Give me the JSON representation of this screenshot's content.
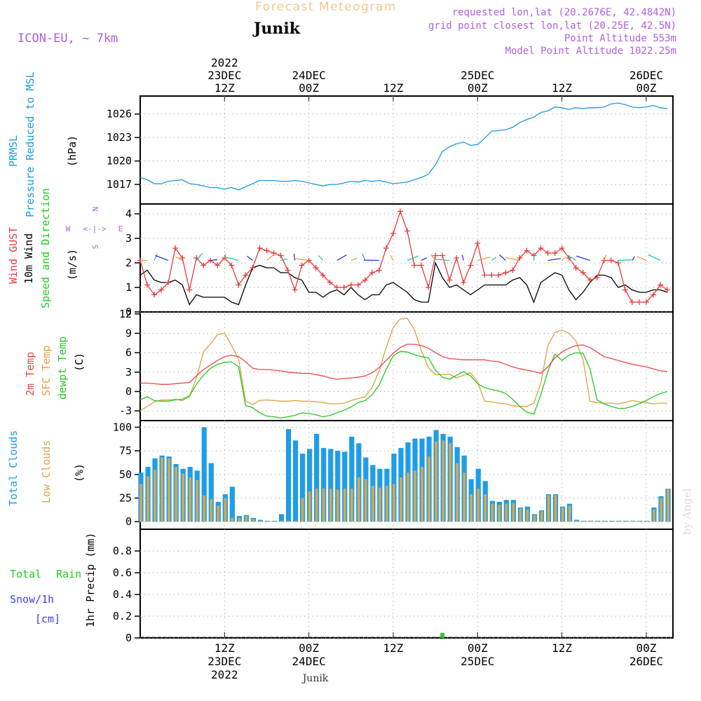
{
  "header": {
    "title": "Forecast Meteogram",
    "location": "Junik",
    "model": "ICON-EU, ~ 7km",
    "requested": "requested lon,lat (20.2676E, 42.4842N)",
    "gridpoint": "grid point closest lon,lat (20.25E, 42.5N)",
    "point_alt": "Point Altitude 553m",
    "model_alt": "Model Point Altitude 1022.25m",
    "footer_location": "Junik",
    "watermark": "by Angel"
  },
  "colors": {
    "pressure": "#1a9ce0",
    "gust": "#e83c3c",
    "wind10m": "#000000",
    "temp2m": "#e84848",
    "sfc": "#e0a040",
    "dewpt": "#22cc22",
    "totalclouds": "#1e9de8",
    "lowclouds": "#d8a850",
    "label_purple": "#b060e0",
    "rain": "#22cc22",
    "snow": "#4040e0"
  },
  "time_axis": {
    "top_labels": [
      {
        "t": 12,
        "lines": [
          "2022",
          "23DEC",
          "12Z"
        ]
      },
      {
        "t": 24,
        "lines": [
          "24DEC",
          "00Z"
        ]
      },
      {
        "t": 36,
        "lines": [
          "12Z"
        ]
      },
      {
        "t": 48,
        "lines": [
          "25DEC",
          "00Z"
        ]
      },
      {
        "t": 60,
        "lines": [
          "12Z"
        ]
      },
      {
        "t": 72,
        "lines": [
          "26DEC",
          "00Z"
        ]
      }
    ],
    "bottom_labels": [
      {
        "t": 12,
        "lines": [
          "12Z",
          "23DEC",
          "2022"
        ]
      },
      {
        "t": 24,
        "lines": [
          "00Z",
          "24DEC"
        ]
      },
      {
        "t": 36,
        "lines": [
          "12Z"
        ]
      },
      {
        "t": 48,
        "lines": [
          "00Z",
          "25DEC"
        ]
      },
      {
        "t": 60,
        "lines": [
          "12Z"
        ]
      },
      {
        "t": 72,
        "lines": [
          "00Z",
          "26DEC"
        ]
      }
    ]
  },
  "panels": {
    "pressure": {
      "labels": [
        "PRMSL",
        "Pressure Reduced to MSL"
      ],
      "unit": "(hPa)"
    },
    "wind": {
      "labels": [
        "Wind GUST",
        "10m Wind",
        "Speed and Direction"
      ],
      "unit": "(m/s)",
      "compass": {
        "n": "N",
        "s": "S",
        "w": "W",
        "e": "E"
      }
    },
    "temp": {
      "labels": [
        "2m Temp",
        "SFC Temp",
        "dewpt Temp"
      ],
      "unit": "(C)"
    },
    "clouds": {
      "labels": [
        "Total Clouds",
        "Low Clouds"
      ],
      "unit": "(%)"
    },
    "precip": {
      "labels": [
        "Total",
        "Rain",
        "Snow/1h",
        "[cm]"
      ],
      "unit": "1hr Precip (mm)"
    }
  },
  "chart_data": [
    {
      "type": "line",
      "title": "PRMSL Pressure Reduced to MSL",
      "ylabel": "(hPa)",
      "ylim": [
        1014.5,
        1028.3
      ],
      "yticks": [
        1017,
        1020,
        1023,
        1026
      ],
      "xunit": "hours from 23DEC 00Z",
      "x": [
        0,
        1,
        2,
        3,
        4,
        5,
        6,
        7,
        8,
        9,
        10,
        11,
        12,
        13,
        14,
        15,
        16,
        17,
        18,
        19,
        20,
        21,
        22,
        23,
        24,
        25,
        26,
        27,
        28,
        29,
        30,
        31,
        32,
        33,
        34,
        35,
        36,
        37,
        38,
        39,
        40,
        41,
        42,
        43,
        44,
        45,
        46,
        47,
        48,
        49,
        50,
        51,
        52,
        53,
        54,
        55,
        56,
        57,
        58,
        59,
        60,
        61,
        62,
        63,
        64,
        65,
        66,
        67,
        68,
        69,
        70,
        71,
        72,
        73,
        74,
        75
      ],
      "series": [
        {
          "name": "PRMSL",
          "values": [
            1017.9,
            1017.6,
            1017.1,
            1017.1,
            1017.4,
            1017.5,
            1017.6,
            1017.1,
            1017.0,
            1016.8,
            1016.6,
            1016.6,
            1016.4,
            1016.6,
            1016.3,
            1016.7,
            1017.1,
            1017.5,
            1017.5,
            1017.5,
            1017.4,
            1017.4,
            1017.5,
            1017.4,
            1017.2,
            1017.0,
            1016.8,
            1017.0,
            1017.0,
            1017.2,
            1017.4,
            1017.3,
            1017.5,
            1017.4,
            1017.5,
            1017.3,
            1017.1,
            1017.2,
            1017.3,
            1017.6,
            1017.9,
            1018.3,
            1019.5,
            1021.2,
            1021.8,
            1022.2,
            1022.4,
            1022.0,
            1022.1,
            1022.9,
            1023.8,
            1023.9,
            1024.0,
            1024.3,
            1024.9,
            1025.3,
            1025.6,
            1026.2,
            1026.4,
            1026.9,
            1026.8,
            1026.6,
            1026.8,
            1026.7,
            1026.8,
            1026.8,
            1026.9,
            1027.3,
            1027.4,
            1027.2,
            1026.9,
            1026.8,
            1026.9,
            1027.1,
            1026.8,
            1026.7
          ]
        }
      ]
    },
    {
      "type": "line",
      "title": "Wind GUST / 10m Wind Speed and Direction",
      "ylabel": "(m/s)",
      "ylim": [
        0,
        4.4
      ],
      "yticks": [
        0,
        1,
        2,
        3,
        4
      ],
      "x": [
        0,
        1,
        2,
        3,
        4,
        5,
        6,
        7,
        8,
        9,
        10,
        11,
        12,
        13,
        14,
        15,
        16,
        17,
        18,
        19,
        20,
        21,
        22,
        23,
        24,
        25,
        26,
        27,
        28,
        29,
        30,
        31,
        32,
        33,
        34,
        35,
        36,
        37,
        38,
        39,
        40,
        41,
        42,
        43,
        44,
        45,
        46,
        47,
        48,
        49,
        50,
        51,
        52,
        53,
        54,
        55,
        56,
        57,
        58,
        59,
        60,
        61,
        62,
        63,
        64,
        65,
        66,
        67,
        68,
        69,
        70,
        71,
        72,
        73,
        74,
        75
      ],
      "series": [
        {
          "name": "Wind GUST",
          "values": [
            2.1,
            1.1,
            0.7,
            0.9,
            1.2,
            2.6,
            2.2,
            0.9,
            2.2,
            1.9,
            2.1,
            1.9,
            2.2,
            1.9,
            1.1,
            1.5,
            1.8,
            2.6,
            2.5,
            2.4,
            2.3,
            1.7,
            0.9,
            1.9,
            2.1,
            1.8,
            1.5,
            1.2,
            1.0,
            1.0,
            1.1,
            1.1,
            1.3,
            1.6,
            1.7,
            2.6,
            3.2,
            4.1,
            3.3,
            1.9,
            1.9,
            1.0,
            2.3,
            2.3,
            1.3,
            2.2,
            1.2,
            1.9,
            2.8,
            1.5,
            1.5,
            1.5,
            1.6,
            1.7,
            2.2,
            2.5,
            2.3,
            2.6,
            2.4,
            2.4,
            2.6,
            2.2,
            1.8,
            1.6,
            1.3,
            1.4,
            2.1,
            2.1,
            2.0,
            0.9,
            0.4,
            0.4,
            0.4,
            0.7,
            1.1,
            0.9
          ]
        },
        {
          "name": "10m Wind",
          "values": [
            1.5,
            1.7,
            1.3,
            1.2,
            1.2,
            1.3,
            1.1,
            0.3,
            0.7,
            0.6,
            0.6,
            0.6,
            0.6,
            0.4,
            0.3,
            1.1,
            1.8,
            1.9,
            1.8,
            1.8,
            1.6,
            1.6,
            1.4,
            1.3,
            0.8,
            0.8,
            0.6,
            0.8,
            0.9,
            0.7,
            1.0,
            0.7,
            0.5,
            0.7,
            0.7,
            1.1,
            1.2,
            1.0,
            0.8,
            0.5,
            0.4,
            0.4,
            2.0,
            1.4,
            1.0,
            1.1,
            0.9,
            0.7,
            0.9,
            1.1,
            1.1,
            1.1,
            1.1,
            1.3,
            1.4,
            1.1,
            0.4,
            1.2,
            1.4,
            1.6,
            1.5,
            0.9,
            0.5,
            0.8,
            1.2,
            1.5,
            1.5,
            1.4,
            1.0,
            1.1,
            0.9,
            0.8,
            0.8,
            0.9,
            0.9,
            0.8
          ]
        }
      ]
    },
    {
      "type": "line",
      "title": "2m Temp / SFC Temp / dewpt Temp",
      "ylabel": "(C)",
      "ylim": [
        -4.5,
        12.3
      ],
      "yticks": [
        -3,
        0,
        3,
        6,
        9,
        12
      ],
      "x": [
        0,
        1,
        2,
        3,
        4,
        5,
        6,
        7,
        8,
        9,
        10,
        11,
        12,
        13,
        14,
        15,
        16,
        17,
        18,
        19,
        20,
        21,
        22,
        23,
        24,
        25,
        26,
        27,
        28,
        29,
        30,
        31,
        32,
        33,
        34,
        35,
        36,
        37,
        38,
        39,
        40,
        41,
        42,
        43,
        44,
        45,
        46,
        47,
        48,
        49,
        50,
        51,
        52,
        53,
        54,
        55,
        56,
        57,
        58,
        59,
        60,
        61,
        62,
        63,
        64,
        65,
        66,
        67,
        68,
        69,
        70,
        71,
        72,
        73,
        74,
        75
      ],
      "series": [
        {
          "name": "2m Temp",
          "values": [
            1.3,
            1.3,
            1.2,
            1.1,
            1.1,
            1.2,
            1.3,
            1.4,
            2.4,
            3.4,
            4.1,
            4.8,
            5.4,
            5.6,
            5.4,
            4.6,
            3.6,
            3.4,
            3.4,
            3.3,
            3.2,
            3.0,
            2.9,
            2.8,
            2.8,
            2.6,
            2.4,
            2.1,
            1.9,
            2.0,
            2.1,
            2.2,
            2.4,
            2.9,
            3.7,
            4.8,
            5.9,
            6.8,
            7.3,
            7.3,
            7.1,
            6.7,
            6.0,
            5.4,
            5.1,
            5.0,
            4.9,
            4.9,
            4.9,
            4.9,
            4.7,
            4.6,
            4.2,
            3.8,
            3.5,
            3.3,
            3.1,
            2.8,
            3.8,
            5.2,
            6.1,
            6.7,
            7.1,
            7.2,
            6.8,
            6.1,
            5.4,
            5.1,
            4.8,
            4.5,
            4.2,
            4.0,
            3.8,
            3.5,
            3.2,
            3.1
          ]
        },
        {
          "name": "SFC Temp",
          "values": [
            -3.0,
            -2.3,
            -1.6,
            -1.3,
            -1.3,
            -1.2,
            -1.4,
            -0.8,
            2.1,
            6.1,
            7.4,
            8.8,
            9.0,
            7.1,
            5.0,
            -1.5,
            -2.0,
            -1.4,
            -1.3,
            -1.4,
            -1.5,
            -1.5,
            -1.4,
            -1.5,
            -1.5,
            -1.6,
            -1.7,
            -1.9,
            -1.9,
            -1.8,
            -1.4,
            -1.1,
            -0.8,
            0.6,
            3.2,
            6.8,
            9.9,
            11.2,
            11.3,
            9.6,
            6.3,
            3.7,
            2.6,
            2.6,
            2.7,
            2.1,
            2.5,
            2.9,
            1.5,
            -1.5,
            -1.6,
            -1.8,
            -1.9,
            -2.2,
            -2.3,
            -2.3,
            -1.8,
            1.3,
            7.1,
            9.1,
            9.5,
            9.0,
            7.8,
            4.9,
            -1.5,
            -1.7,
            -1.8,
            -1.8,
            -1.9,
            -1.7,
            -1.4,
            -1.6,
            -1.7,
            -1.9,
            -1.8,
            -1.8
          ]
        },
        {
          "name": "dewpt Temp",
          "values": [
            -1.3,
            -0.8,
            -1.4,
            -1.5,
            -1.5,
            -1.3,
            -1.2,
            -0.7,
            1.1,
            2.5,
            3.6,
            4.2,
            4.5,
            4.6,
            3.8,
            -2.2,
            -2.5,
            -3.3,
            -3.8,
            -3.9,
            -4.1,
            -3.9,
            -3.7,
            -3.3,
            -3.4,
            -3.6,
            -3.9,
            -3.7,
            -3.3,
            -2.9,
            -2.4,
            -1.7,
            -1.4,
            -0.5,
            1.0,
            3.4,
            5.5,
            6.2,
            6.1,
            5.7,
            5.4,
            5.2,
            3.3,
            2.2,
            1.9,
            2.5,
            3.1,
            2.4,
            1.2,
            0.6,
            0.3,
            0.1,
            -0.3,
            -1.2,
            -2.3,
            -3.2,
            -3.5,
            -0.5,
            3.1,
            5.8,
            4.8,
            5.6,
            6.0,
            5.9,
            3.5,
            -1.3,
            -1.9,
            -2.3,
            -2.6,
            -2.6,
            -2.3,
            -1.9,
            -1.4,
            -0.8,
            -0.3,
            0.0
          ]
        }
      ]
    },
    {
      "type": "bar",
      "title": "Total Clouds / Low Clouds",
      "ylabel": "(%)",
      "ylim": [
        -8,
        107
      ],
      "yticks": [
        0,
        25,
        50,
        75,
        100
      ],
      "x": [
        0,
        1,
        2,
        3,
        4,
        5,
        6,
        7,
        8,
        9,
        10,
        11,
        12,
        13,
        14,
        15,
        16,
        17,
        18,
        19,
        20,
        21,
        22,
        23,
        24,
        25,
        26,
        27,
        28,
        29,
        30,
        31,
        32,
        33,
        34,
        35,
        36,
        37,
        38,
        39,
        40,
        41,
        42,
        43,
        44,
        45,
        46,
        47,
        48,
        49,
        50,
        51,
        52,
        53,
        54,
        55,
        56,
        57,
        58,
        59,
        60,
        61,
        62,
        63,
        64,
        65,
        66,
        67,
        68,
        69,
        70,
        71,
        72,
        73,
        74,
        75
      ],
      "series": [
        {
          "name": "Total Clouds",
          "values": [
            52,
            58,
            67,
            70,
            69,
            61,
            56,
            58,
            54,
            100,
            62,
            21,
            29,
            37,
            6,
            7,
            4,
            2,
            1,
            1,
            8,
            98,
            86,
            72,
            77,
            93,
            78,
            77,
            75,
            74,
            90,
            83,
            68,
            60,
            56,
            56,
            72,
            78,
            84,
            88,
            88,
            90,
            97,
            93,
            90,
            79,
            70,
            45,
            56,
            43,
            22,
            21,
            23,
            23,
            15,
            16,
            8,
            12,
            29,
            29,
            16,
            19,
            2,
            1,
            1,
            1,
            1,
            1,
            1,
            1,
            1,
            1,
            1,
            15,
            27,
            35
          ]
        },
        {
          "name": "Low Clouds",
          "values": [
            40,
            48,
            55,
            68,
            67,
            58,
            51,
            47,
            44,
            28,
            24,
            17,
            25,
            4,
            4,
            6,
            3,
            1,
            1,
            1,
            1,
            1,
            1,
            25,
            32,
            35,
            35,
            35,
            34,
            35,
            35,
            47,
            45,
            38,
            36,
            38,
            40,
            47,
            52,
            54,
            58,
            69,
            85,
            86,
            83,
            62,
            52,
            29,
            35,
            29,
            19,
            18,
            19,
            20,
            14,
            13,
            7,
            11,
            28,
            28,
            15,
            17,
            1,
            1,
            1,
            1,
            1,
            1,
            1,
            1,
            1,
            1,
            1,
            13,
            25,
            35
          ]
        }
      ]
    },
    {
      "type": "bar",
      "title": "1hr Precip",
      "ylabel": "1hr Precip (mm)",
      "ylim": [
        0,
        1.0
      ],
      "yticks": [
        0,
        0.2,
        0.4,
        0.6,
        0.8
      ],
      "series": [
        {
          "name": "Total Rain",
          "points": [
            [
              43,
              0.02
            ]
          ]
        },
        {
          "name": "Snow/1h",
          "points": []
        }
      ]
    }
  ]
}
